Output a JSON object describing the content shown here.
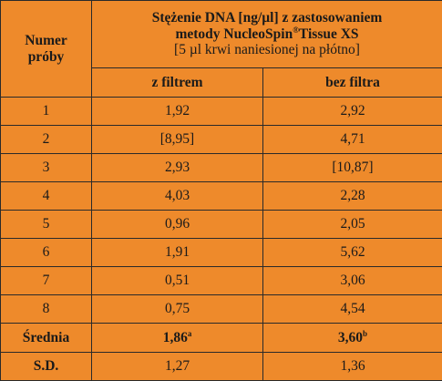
{
  "table": {
    "header_label_line1": "Numer",
    "header_label_line2": "próby",
    "title_line1": "Stężenie DNA [ng/µl] z zastosowaniem",
    "title_line2_pre": "metody NucleoSpin",
    "title_line2_sup": "®",
    "title_line2_post": "Tissue XS",
    "subtitle": "[5 µl krwi naniesionej na płótno]",
    "col_with_filter": "z filtrem",
    "col_without_filter": "bez filtra",
    "rows": [
      {
        "sample": "1",
        "with_filter": "1,92",
        "without_filter": "2,92"
      },
      {
        "sample": "2",
        "with_filter": "[8,95]",
        "without_filter": "4,71"
      },
      {
        "sample": "3",
        "with_filter": "2,93",
        "without_filter": "[10,87]"
      },
      {
        "sample": "4",
        "with_filter": "4,03",
        "without_filter": "2,28"
      },
      {
        "sample": "5",
        "with_filter": "0,96",
        "without_filter": "2,05"
      },
      {
        "sample": "6",
        "with_filter": "1,91",
        "without_filter": "5,62"
      },
      {
        "sample": "7",
        "with_filter": "0,51",
        "without_filter": "3,06"
      },
      {
        "sample": "8",
        "with_filter": "0,75",
        "without_filter": "4,54"
      }
    ],
    "mean": {
      "label": "Średnia",
      "with_filter": "1,86",
      "with_filter_sup": "a",
      "without_filter": "3,60",
      "without_filter_sup": "b"
    },
    "sd": {
      "label": "S.D.",
      "with_filter": "1,27",
      "without_filter": "1,36"
    },
    "background_color": "#ee8a2b"
  }
}
